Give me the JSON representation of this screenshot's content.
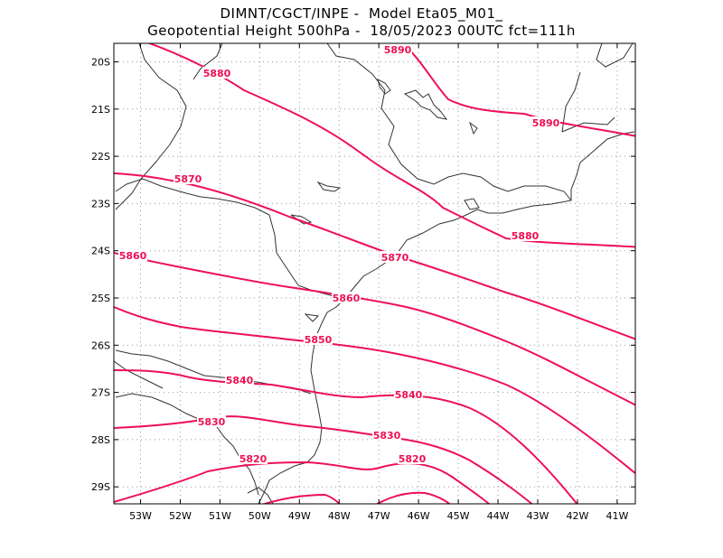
{
  "title": {
    "line1": "DIMNT/CGCT/INPE -  Model Eta05_M01_",
    "line2": "Geopotential Height 500hPa -  18/05/2023 00UTC fct=111h"
  },
  "colors": {
    "contour": "#ee1055",
    "coast": "#333333",
    "grid": "#999999",
    "frame": "#000000"
  },
  "axes": {
    "lon_ticks": [
      "53W",
      "52W",
      "51W",
      "50W",
      "49W",
      "48W",
      "47W",
      "46W",
      "45W",
      "44W",
      "43W",
      "42W",
      "41W"
    ],
    "lat_ticks": [
      "20S",
      "21S",
      "22S",
      "23S",
      "24S",
      "25S",
      "26S",
      "27S",
      "28S",
      "29S"
    ]
  },
  "contour_labels": [
    "5890",
    "5880",
    "5890",
    "5870",
    "5880",
    "5860",
    "5870",
    "5860",
    "5850",
    "5840",
    "5840",
    "5830",
    "5830",
    "5820",
    "5820"
  ]
}
